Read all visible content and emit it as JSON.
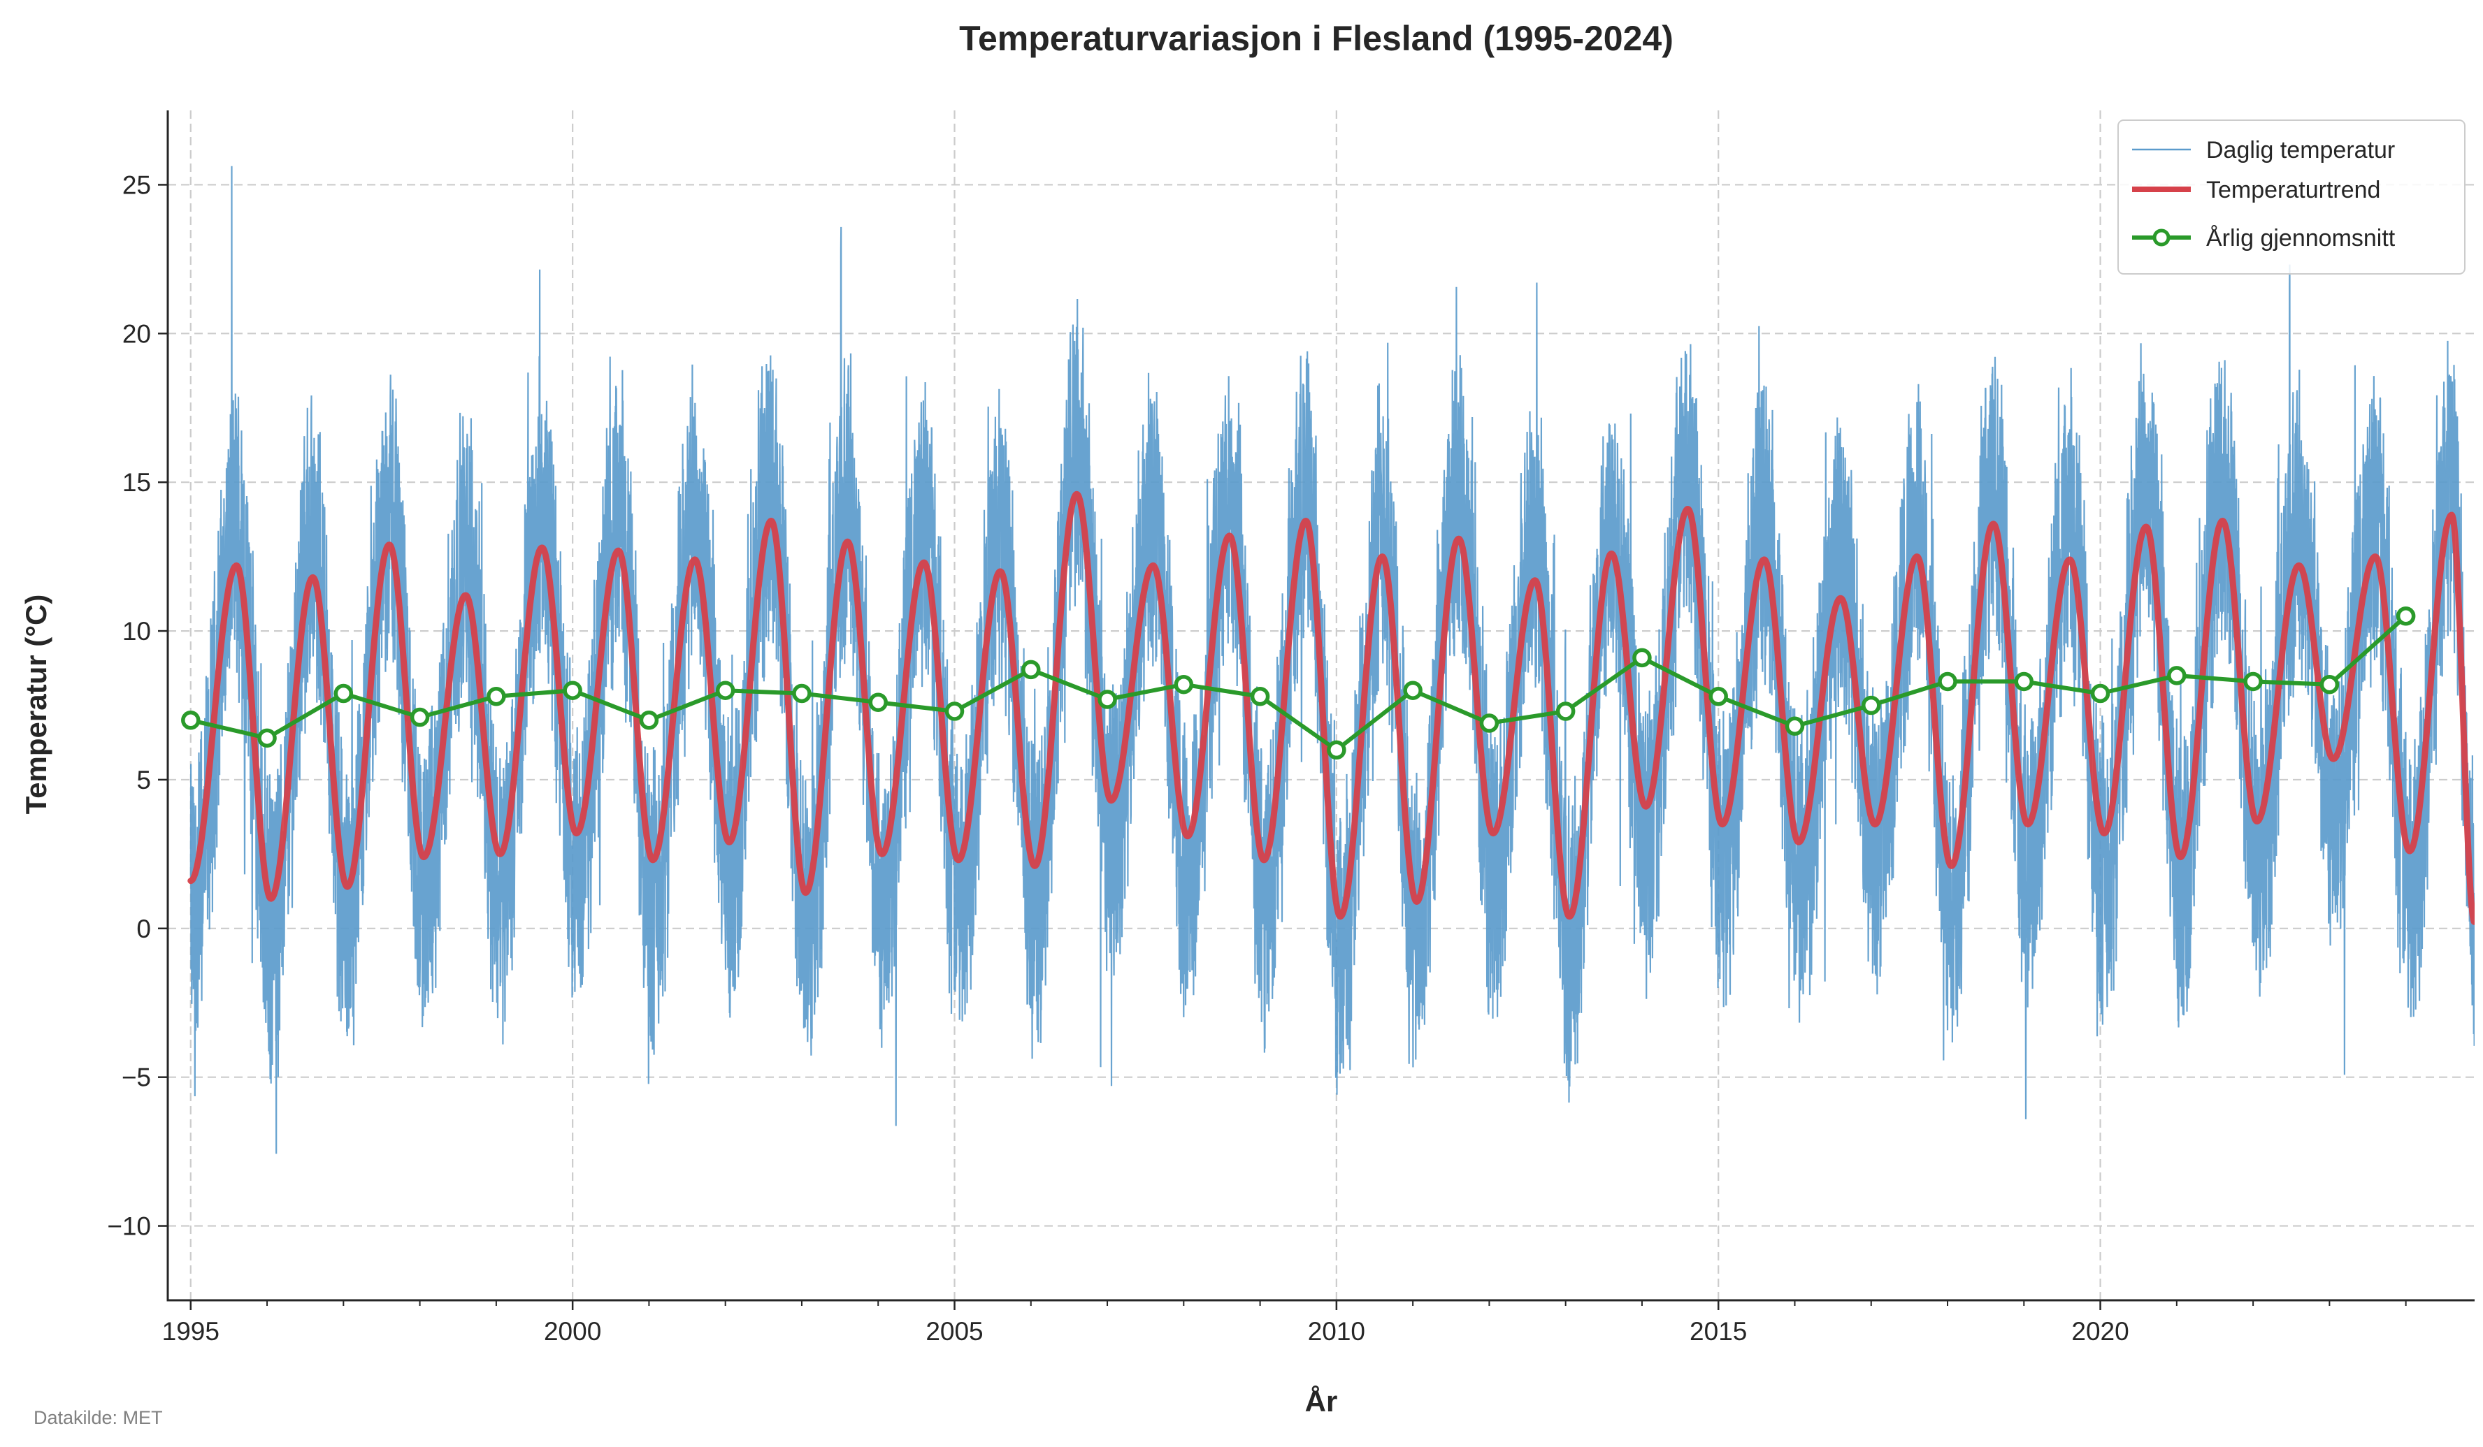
{
  "chart_data": {
    "type": "line",
    "title": "Temperaturvariasjon i Flesland (1995-2024)",
    "xlabel": "År",
    "ylabel": "Temperatur (°C)",
    "xlim": [
      1994.7,
      2024.9
    ],
    "ylim": [
      -12.5,
      27.5
    ],
    "x_ticks": [
      1995,
      2000,
      2005,
      2010,
      2015,
      2020
    ],
    "x_tick_labels": [
      "1995",
      "2000",
      "2005",
      "2010",
      "2015",
      "2020"
    ],
    "x_minor_ticks": [
      1996,
      1997,
      1998,
      1999,
      2001,
      2002,
      2003,
      2004,
      2006,
      2007,
      2008,
      2009,
      2011,
      2012,
      2013,
      2014,
      2016,
      2017,
      2018,
      2019,
      2021,
      2022,
      2023,
      2024
    ],
    "y_ticks": [
      -10,
      -5,
      0,
      5,
      10,
      15,
      20,
      25
    ],
    "y_tick_labels": [
      "−10",
      "−5",
      "0",
      "5",
      "10",
      "15",
      "20",
      "25"
    ],
    "grid": true,
    "legend_position": "top-right",
    "colors": {
      "daily": "#5b9bcc",
      "trend": "#d6414a",
      "annual": "#2a9a2a"
    },
    "series": [
      {
        "name": "Daglig temperatur",
        "kind": "daily",
        "note": "approx. 30 years of daily values; synthesized by the drawing script from the annual means and trend extremes below"
      },
      {
        "name": "Temperaturtrend",
        "kind": "trend",
        "start": [
          1995.0,
          1.6
        ],
        "end": [
          2024.9,
          0.2
        ],
        "summer_peaks": [
          12.2,
          11.8,
          12.9,
          11.2,
          12.8,
          12.7,
          12.4,
          13.7,
          13.0,
          12.3,
          12.0,
          14.6,
          12.2,
          13.2,
          13.7,
          12.5,
          13.1,
          11.7,
          12.6,
          14.1,
          12.4,
          11.1,
          12.5,
          13.6,
          12.4,
          13.5,
          13.7,
          12.2,
          12.5,
          13.9
        ],
        "winter_troughs": [
          1.0,
          1.4,
          2.4,
          2.5,
          3.2,
          2.3,
          2.9,
          1.2,
          2.5,
          2.3,
          2.1,
          4.3,
          3.1,
          2.3,
          0.4,
          0.9,
          3.2,
          0.4,
          4.1,
          3.5,
          2.9,
          3.5,
          2.1,
          3.5,
          3.2,
          2.4,
          3.6,
          5.7,
          2.6
        ]
      },
      {
        "name": "Årlig gjennomsnitt",
        "kind": "annual",
        "x": [
          1995,
          1996,
          1997,
          1998,
          1999,
          2000,
          2001,
          2002,
          2003,
          2004,
          2005,
          2006,
          2007,
          2008,
          2009,
          2010,
          2011,
          2012,
          2013,
          2014,
          2015,
          2016,
          2017,
          2018,
          2019,
          2020,
          2021,
          2022,
          2023,
          2024
        ],
        "y": [
          7.0,
          6.4,
          7.9,
          7.1,
          7.8,
          8.0,
          7.0,
          8.0,
          7.9,
          7.6,
          7.3,
          8.7,
          7.7,
          8.2,
          7.8,
          6.0,
          8.0,
          6.9,
          7.3,
          9.1,
          7.8,
          6.8,
          7.5,
          8.3,
          8.3,
          7.9,
          8.5,
          8.3,
          8.2,
          10.5
        ]
      }
    ]
  },
  "source_note": "Datakilde: MET"
}
